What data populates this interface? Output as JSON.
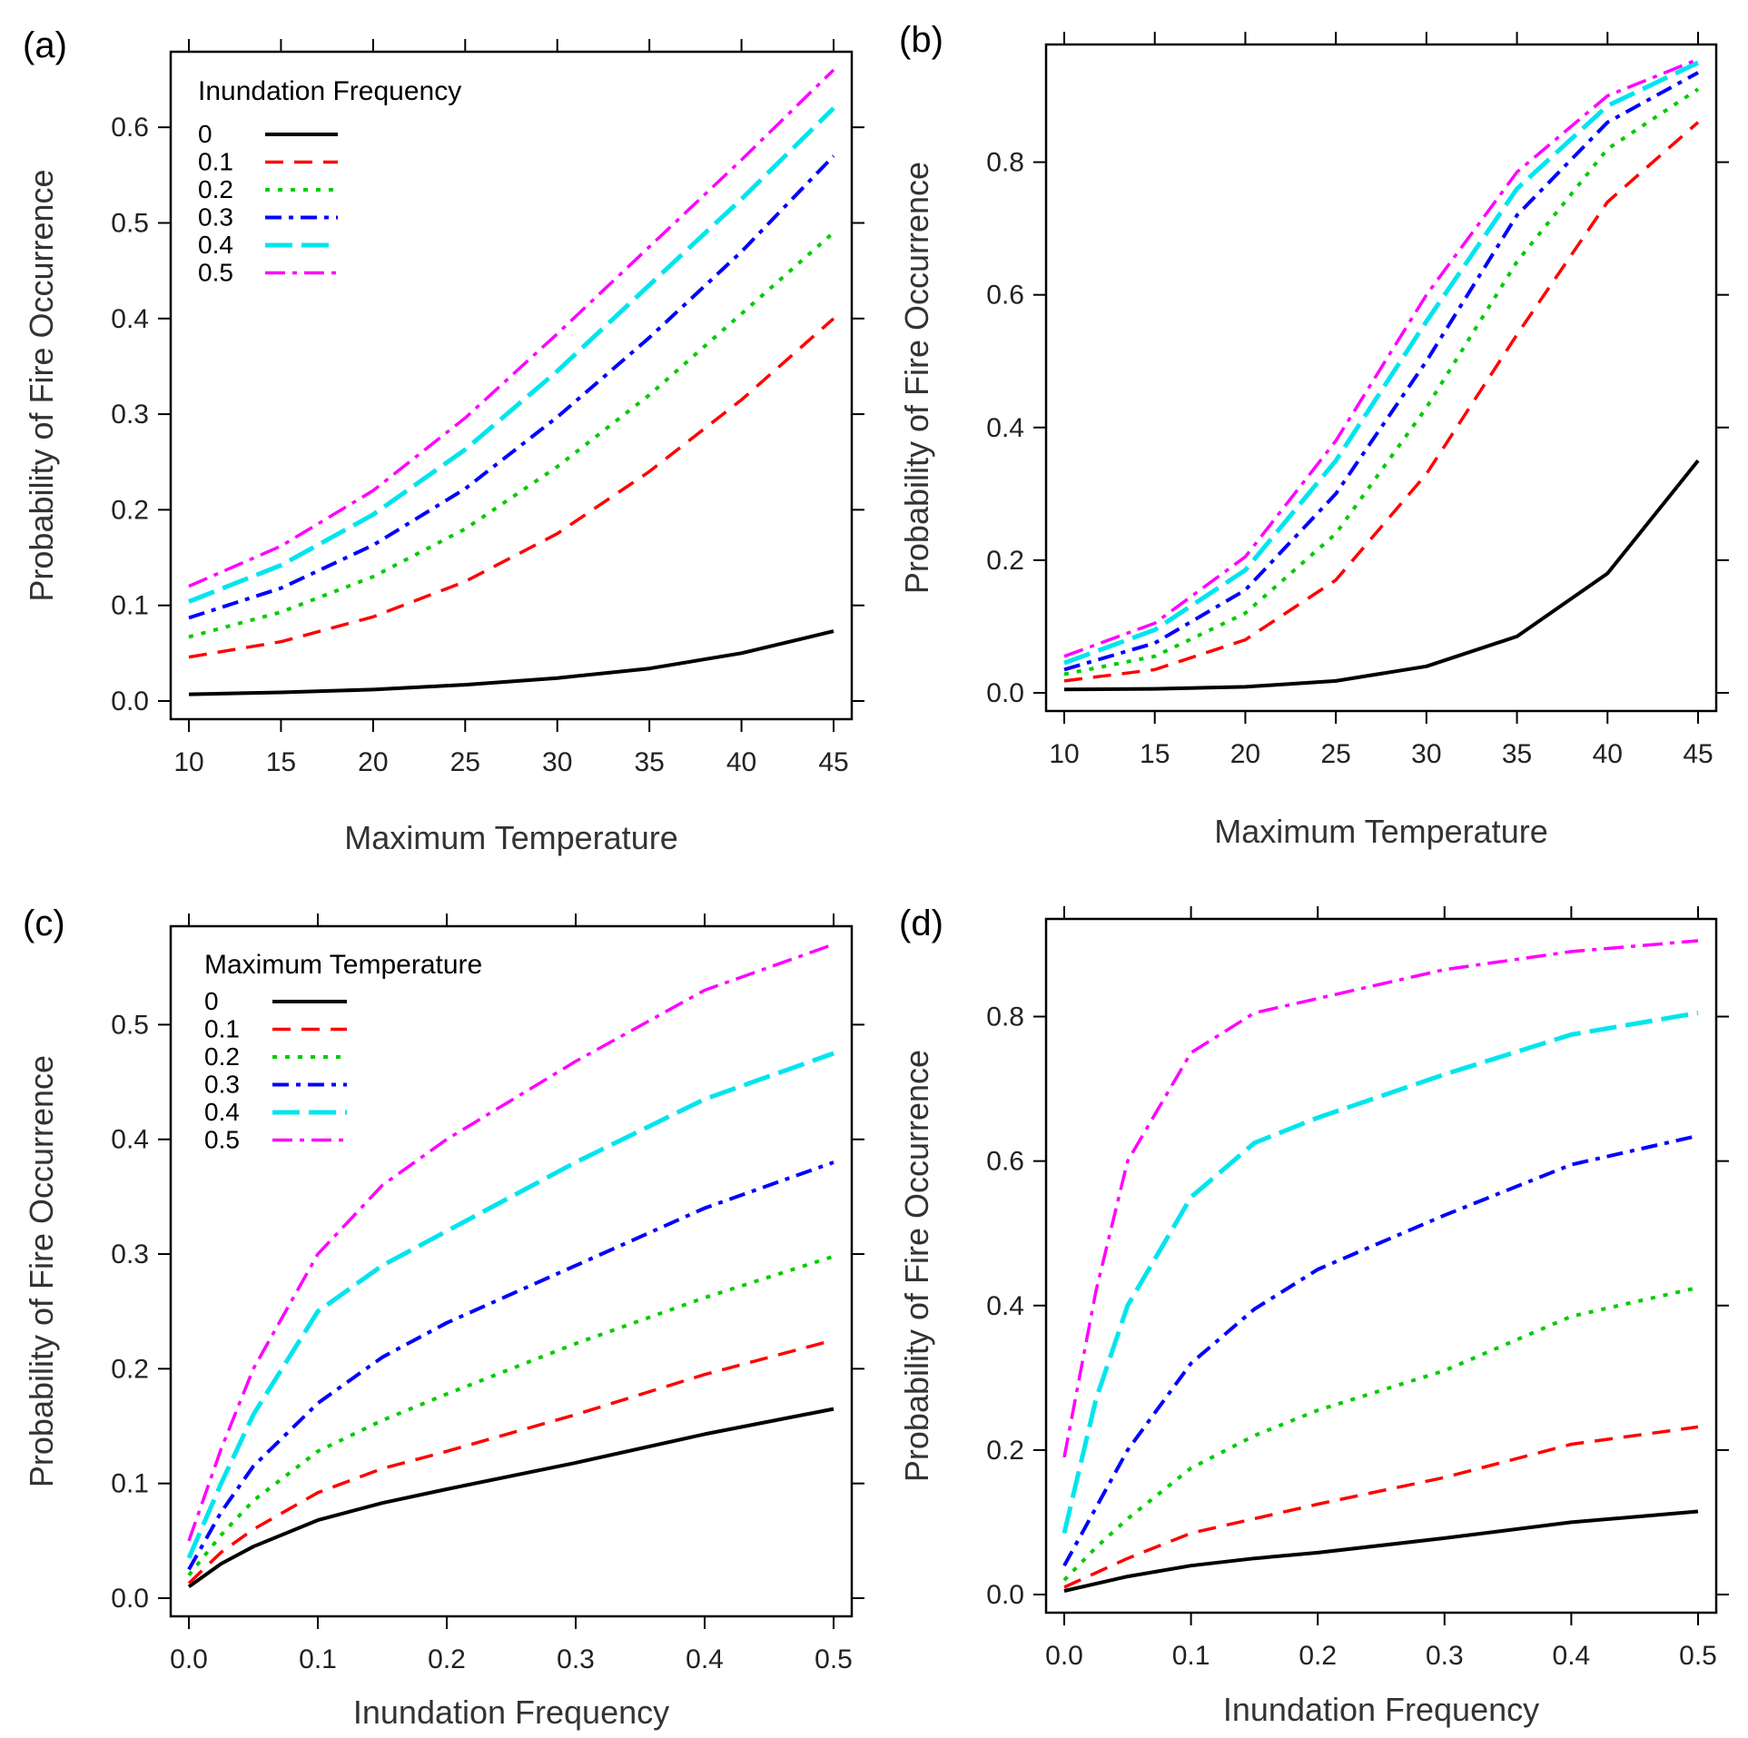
{
  "figure": {
    "legend_colors": [
      "#000000",
      "#ff0000",
      "#00cc00",
      "#0000ff",
      "#00e5ee",
      "#ff00ff"
    ]
  },
  "chart_data": [
    {
      "panel": "(a)",
      "type": "line",
      "xlabel": "Maximum Temperature",
      "ylabel": "Probability of Fire Occurrence",
      "xlim": [
        10,
        45
      ],
      "ylim": [
        0,
        0.66
      ],
      "xticks": [
        10,
        15,
        20,
        25,
        30,
        35,
        40,
        45
      ],
      "yticks": [
        0.0,
        0.1,
        0.2,
        0.3,
        0.4,
        0.5,
        0.6
      ],
      "xtick_labels": [
        "10",
        "15",
        "20",
        "25",
        "30",
        "35",
        "40",
        "45"
      ],
      "ytick_labels": [
        "0.0",
        "0.1",
        "0.2",
        "0.3",
        "0.4",
        "0.5",
        "0.6"
      ],
      "x": [
        10,
        15,
        20,
        25,
        30,
        35,
        40,
        45
      ],
      "legend": {
        "title": "Inundation Frequency",
        "entries": [
          "0",
          "0.1",
          "0.2",
          "0.3",
          "0.4",
          "0.5"
        ]
      },
      "series": [
        {
          "name": "0",
          "values": [
            0.007,
            0.009,
            0.012,
            0.017,
            0.024,
            0.034,
            0.05,
            0.073
          ]
        },
        {
          "name": "0.1",
          "values": [
            0.046,
            0.062,
            0.088,
            0.125,
            0.175,
            0.24,
            0.315,
            0.4
          ]
        },
        {
          "name": "0.2",
          "values": [
            0.067,
            0.093,
            0.13,
            0.18,
            0.245,
            0.32,
            0.405,
            0.49
          ]
        },
        {
          "name": "0.3",
          "values": [
            0.087,
            0.118,
            0.163,
            0.222,
            0.297,
            0.38,
            0.47,
            0.57
          ]
        },
        {
          "name": "0.4",
          "values": [
            0.104,
            0.142,
            0.195,
            0.263,
            0.345,
            0.435,
            0.525,
            0.62
          ]
        },
        {
          "name": "0.5",
          "values": [
            0.12,
            0.162,
            0.22,
            0.296,
            0.384,
            0.475,
            0.566,
            0.66
          ]
        }
      ]
    },
    {
      "panel": "(b)",
      "type": "line",
      "xlabel": "Maximum Temperature",
      "ylabel": "Probability of Fire Occurrence",
      "xlim": [
        10,
        45
      ],
      "ylim": [
        0,
        0.95
      ],
      "xticks": [
        10,
        15,
        20,
        25,
        30,
        35,
        40,
        45
      ],
      "yticks": [
        0.0,
        0.2,
        0.4,
        0.6,
        0.8
      ],
      "xtick_labels": [
        "10",
        "15",
        "20",
        "25",
        "30",
        "35",
        "40",
        "45"
      ],
      "ytick_labels": [
        "0.0",
        "0.2",
        "0.4",
        "0.6",
        "0.8"
      ],
      "x": [
        10,
        15,
        20,
        25,
        30,
        35,
        40,
        45
      ],
      "series": [
        {
          "name": "0",
          "values": [
            0.005,
            0.006,
            0.009,
            0.018,
            0.04,
            0.085,
            0.18,
            0.35
          ]
        },
        {
          "name": "0.1",
          "values": [
            0.018,
            0.035,
            0.08,
            0.17,
            0.33,
            0.54,
            0.74,
            0.86
          ]
        },
        {
          "name": "0.2",
          "values": [
            0.028,
            0.055,
            0.12,
            0.24,
            0.43,
            0.65,
            0.82,
            0.91
          ]
        },
        {
          "name": "0.3",
          "values": [
            0.035,
            0.075,
            0.155,
            0.3,
            0.5,
            0.72,
            0.86,
            0.935
          ]
        },
        {
          "name": "0.4",
          "values": [
            0.045,
            0.095,
            0.185,
            0.35,
            0.56,
            0.76,
            0.885,
            0.95
          ]
        },
        {
          "name": "0.5",
          "values": [
            0.055,
            0.105,
            0.205,
            0.38,
            0.6,
            0.785,
            0.9,
            0.955
          ]
        }
      ]
    },
    {
      "panel": "(c)",
      "type": "line",
      "xlabel": "Inundation Frequency",
      "ylabel": "Probability of Fire Occurrence",
      "xlim": [
        0,
        0.5
      ],
      "ylim": [
        0,
        0.57
      ],
      "xticks": [
        0.0,
        0.1,
        0.2,
        0.3,
        0.4,
        0.5
      ],
      "yticks": [
        0.0,
        0.1,
        0.2,
        0.3,
        0.4,
        0.5
      ],
      "xtick_labels": [
        "0.0",
        "0.1",
        "0.2",
        "0.3",
        "0.4",
        "0.5"
      ],
      "ytick_labels": [
        "0.0",
        "0.1",
        "0.2",
        "0.3",
        "0.4",
        "0.5"
      ],
      "x": [
        0,
        0.025,
        0.05,
        0.1,
        0.15,
        0.2,
        0.3,
        0.4,
        0.5
      ],
      "legend": {
        "title": "Maximum Temperature",
        "entries": [
          "0",
          "0.1",
          "0.2",
          "0.3",
          "0.4",
          "0.5"
        ]
      },
      "series": [
        {
          "name": "0",
          "values": [
            0.01,
            0.03,
            0.045,
            0.068,
            0.083,
            0.095,
            0.118,
            0.143,
            0.165
          ]
        },
        {
          "name": "0.1",
          "values": [
            0.013,
            0.04,
            0.06,
            0.092,
            0.113,
            0.128,
            0.16,
            0.195,
            0.225
          ]
        },
        {
          "name": "0.2",
          "values": [
            0.02,
            0.055,
            0.085,
            0.128,
            0.155,
            0.178,
            0.222,
            0.262,
            0.298
          ]
        },
        {
          "name": "0.3",
          "values": [
            0.025,
            0.075,
            0.115,
            0.17,
            0.21,
            0.24,
            0.29,
            0.34,
            0.38
          ]
        },
        {
          "name": "0.4",
          "values": [
            0.035,
            0.1,
            0.16,
            0.25,
            0.29,
            0.32,
            0.38,
            0.435,
            0.475
          ]
        },
        {
          "name": "0.5",
          "values": [
            0.05,
            0.13,
            0.2,
            0.3,
            0.36,
            0.4,
            0.468,
            0.53,
            0.57
          ]
        }
      ]
    },
    {
      "panel": "(d)",
      "type": "line",
      "xlabel": "Inundation Frequency",
      "ylabel": "Probability of Fire Occurrence",
      "xlim": [
        0,
        0.5
      ],
      "ylim": [
        0,
        0.91
      ],
      "xticks": [
        0.0,
        0.1,
        0.2,
        0.3,
        0.4,
        0.5
      ],
      "yticks": [
        0.0,
        0.2,
        0.4,
        0.6,
        0.8
      ],
      "xtick_labels": [
        "0.0",
        "0.1",
        "0.2",
        "0.3",
        "0.4",
        "0.5"
      ],
      "ytick_labels": [
        "0.0",
        "0.2",
        "0.4",
        "0.6",
        "0.8"
      ],
      "x": [
        0,
        0.025,
        0.05,
        0.1,
        0.15,
        0.2,
        0.3,
        0.4,
        0.5
      ],
      "series": [
        {
          "name": "0",
          "values": [
            0.005,
            0.015,
            0.025,
            0.04,
            0.05,
            0.058,
            0.078,
            0.1,
            0.115
          ]
        },
        {
          "name": "0.1",
          "values": [
            0.01,
            0.03,
            0.05,
            0.085,
            0.105,
            0.125,
            0.162,
            0.208,
            0.232
          ]
        },
        {
          "name": "0.2",
          "values": [
            0.02,
            0.065,
            0.105,
            0.175,
            0.22,
            0.255,
            0.31,
            0.385,
            0.425
          ]
        },
        {
          "name": "0.3",
          "values": [
            0.04,
            0.12,
            0.2,
            0.32,
            0.395,
            0.45,
            0.525,
            0.595,
            0.635
          ]
        },
        {
          "name": "0.4",
          "values": [
            0.085,
            0.27,
            0.4,
            0.55,
            0.625,
            0.66,
            0.72,
            0.775,
            0.805
          ]
        },
        {
          "name": "0.5",
          "values": [
            0.19,
            0.42,
            0.6,
            0.75,
            0.805,
            0.825,
            0.865,
            0.89,
            0.905
          ]
        }
      ]
    }
  ]
}
